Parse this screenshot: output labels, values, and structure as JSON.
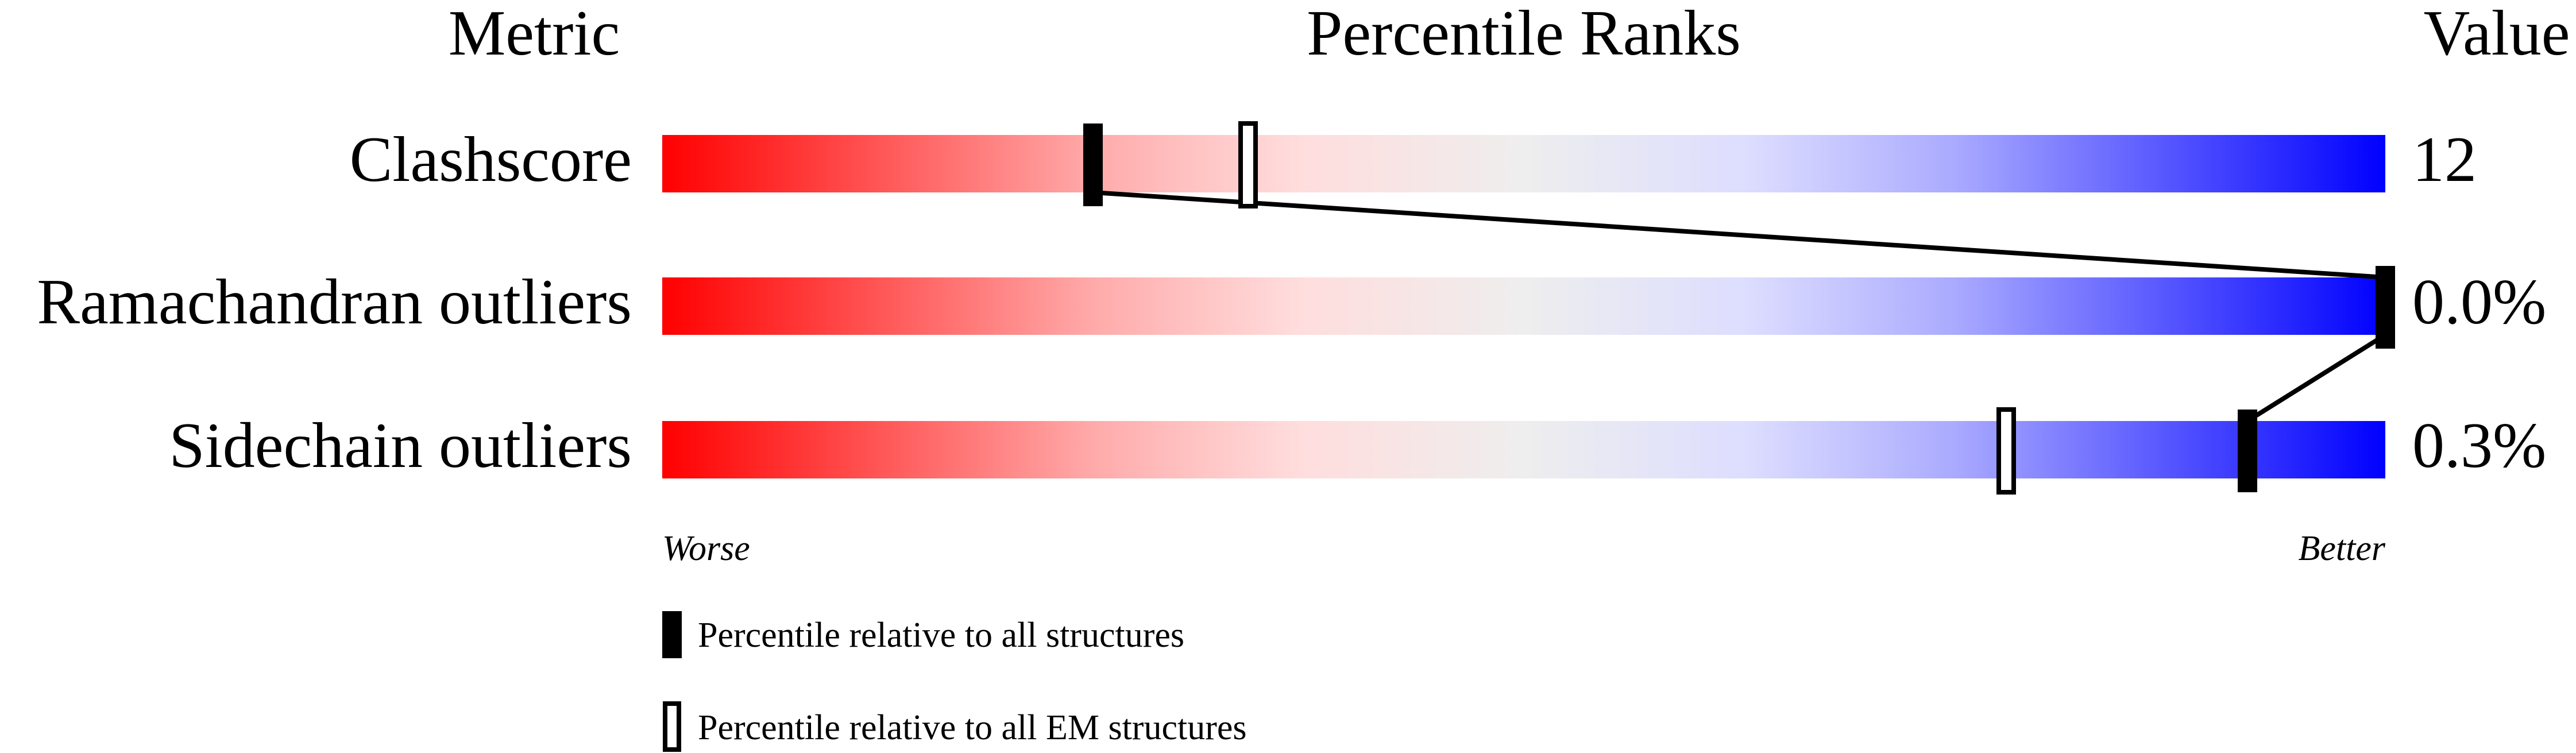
{
  "chart_data": {
    "type": "bar",
    "headers": {
      "metric": "Metric",
      "ranks": "Percentile Ranks",
      "value": "Value"
    },
    "xlim": [
      0,
      100
    ],
    "axis_labels": {
      "left": "Worse",
      "right": "Better"
    },
    "colors": {
      "worse": "#ff0000",
      "neutral": "#eeeeee",
      "better": "#0000ff",
      "marker": "#000000"
    },
    "metrics": [
      {
        "name": "Clashscore",
        "value": "12",
        "percentile_all": 25,
        "percentile_em": 34
      },
      {
        "name": "Ramachandran outliers",
        "value": "0.0%",
        "percentile_all": 100,
        "percentile_em": null
      },
      {
        "name": "Sidechain outliers",
        "value": "0.3%",
        "percentile_all": 92,
        "percentile_em": 78
      }
    ],
    "legend": {
      "all": "Percentile relative to all structures",
      "em": "Percentile relative to all EM structures"
    }
  }
}
